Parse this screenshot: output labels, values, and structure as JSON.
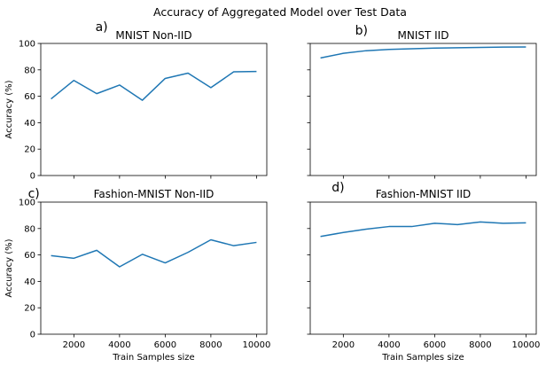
{
  "suptitle": "Accuracy of Aggregated Model over Test Data",
  "colors": {
    "line": "#1f77b4",
    "axis": "#000000",
    "background": "#ffffff"
  },
  "chart_data": [
    {
      "type": "line",
      "panel_label": "a)",
      "title": "MNIST Non-IID",
      "xlabel": "",
      "ylabel": "Accuracy (%)",
      "xlim": [
        550,
        10450
      ],
      "ylim": [
        0,
        100
      ],
      "xticks": [
        2000,
        4000,
        6000,
        8000,
        10000
      ],
      "yticks": [
        0,
        20,
        40,
        60,
        80,
        100
      ],
      "show_xticklabels": false,
      "show_yticklabels": true,
      "grid": false,
      "x": [
        1000,
        2000,
        3000,
        4000,
        5000,
        6000,
        7000,
        8000,
        9000,
        10000
      ],
      "values": [
        58,
        72,
        62,
        68.5,
        57,
        73.5,
        77.5,
        66.5,
        78.5,
        78.8
      ]
    },
    {
      "type": "line",
      "panel_label": "b)",
      "title": "MNIST IID",
      "xlabel": "",
      "ylabel": "",
      "xlim": [
        550,
        10450
      ],
      "ylim": [
        0,
        100
      ],
      "xticks": [
        2000,
        4000,
        6000,
        8000,
        10000
      ],
      "yticks": [
        0,
        20,
        40,
        60,
        80,
        100
      ],
      "show_xticklabels": false,
      "show_yticklabels": false,
      "grid": false,
      "x": [
        1000,
        2000,
        3000,
        4000,
        5000,
        6000,
        7000,
        8000,
        9000,
        10000
      ],
      "values": [
        89,
        92.5,
        94.5,
        95.5,
        96,
        96.5,
        96.7,
        97,
        97.2,
        97.3
      ]
    },
    {
      "type": "line",
      "panel_label": "c)",
      "title": "Fashion-MNIST Non-IID",
      "xlabel": "Train Samples size",
      "ylabel": "Accuracy (%)",
      "xlim": [
        550,
        10450
      ],
      "ylim": [
        0,
        100
      ],
      "xticks": [
        2000,
        4000,
        6000,
        8000,
        10000
      ],
      "yticks": [
        0,
        20,
        40,
        60,
        80,
        100
      ],
      "show_xticklabels": true,
      "show_yticklabels": true,
      "grid": false,
      "x": [
        1000,
        2000,
        3000,
        4000,
        5000,
        6000,
        7000,
        8000,
        9000,
        10000
      ],
      "values": [
        59.5,
        57.5,
        63.5,
        51,
        60.5,
        54,
        62,
        71.5,
        67,
        69.5
      ]
    },
    {
      "type": "line",
      "panel_label": "d)",
      "title": "Fashion-MNIST IID",
      "xlabel": "Train Samples size",
      "ylabel": "",
      "xlim": [
        550,
        10450
      ],
      "ylim": [
        0,
        100
      ],
      "xticks": [
        2000,
        4000,
        6000,
        8000,
        10000
      ],
      "yticks": [
        0,
        20,
        40,
        60,
        80,
        100
      ],
      "show_xticklabels": true,
      "show_yticklabels": false,
      "grid": false,
      "x": [
        1000,
        2000,
        3000,
        4000,
        5000,
        6000,
        7000,
        8000,
        9000,
        10000
      ],
      "values": [
        74,
        77,
        79.5,
        81.5,
        81.5,
        84,
        83,
        85,
        84,
        84.3
      ]
    }
  ]
}
